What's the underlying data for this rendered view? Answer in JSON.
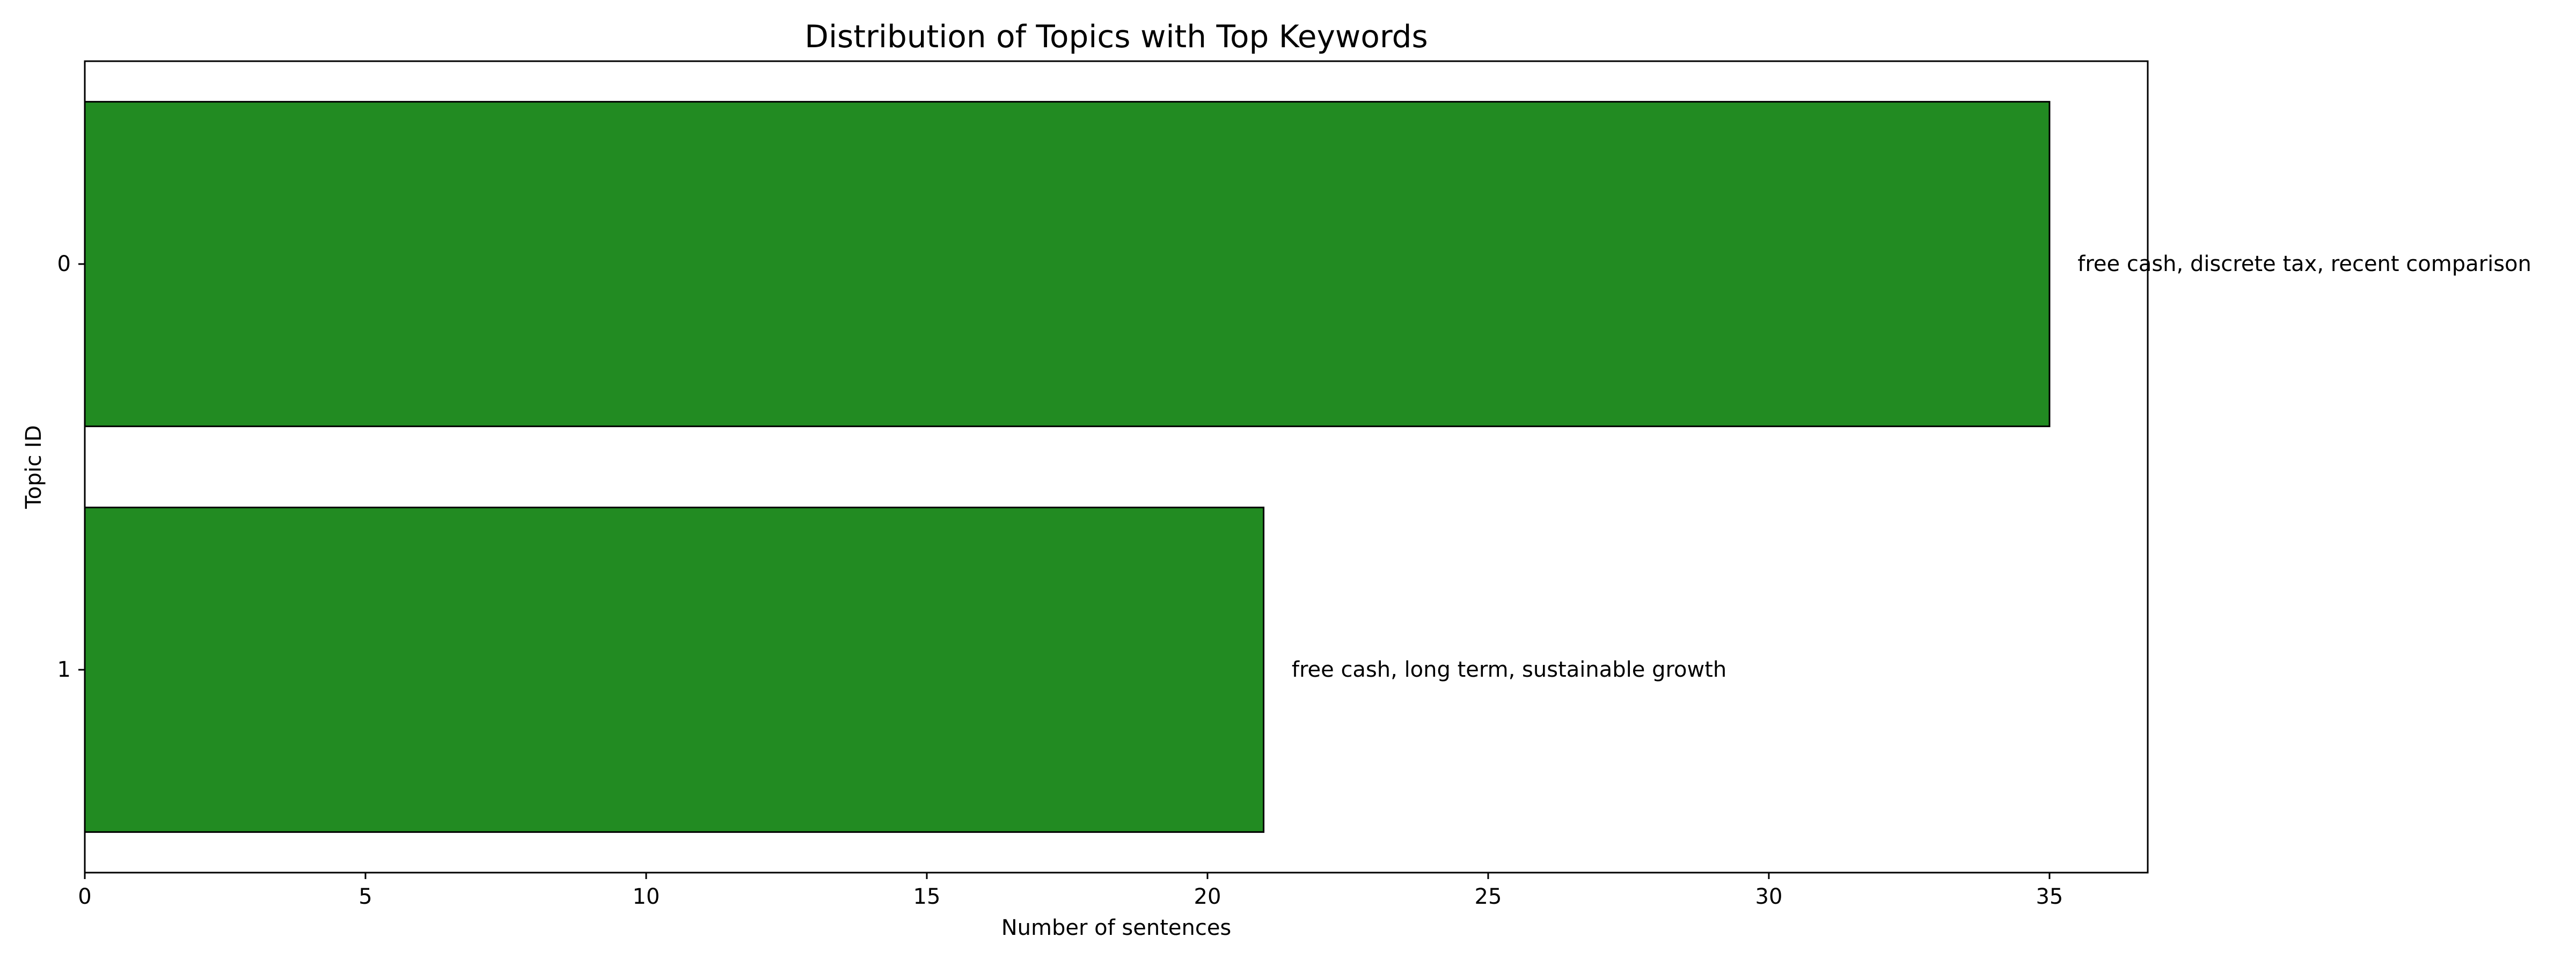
{
  "chart_data": {
    "type": "bar",
    "orientation": "horizontal",
    "title": "Distribution of Topics with Top Keywords",
    "xlabel": "Number of sentences",
    "ylabel": "Topic ID",
    "categories": [
      "0",
      "1"
    ],
    "values": [
      35,
      21
    ],
    "annotations": [
      "free cash, discrete tax, recent comparison",
      "free cash, long term, sustainable growth"
    ],
    "xlim": [
      0,
      36.75
    ],
    "xticks": [
      0,
      5,
      10,
      15,
      20,
      25,
      30,
      35
    ],
    "grid": false,
    "legend": "none",
    "bar_color": "#228B22",
    "bar_edge_color": "#000000"
  }
}
